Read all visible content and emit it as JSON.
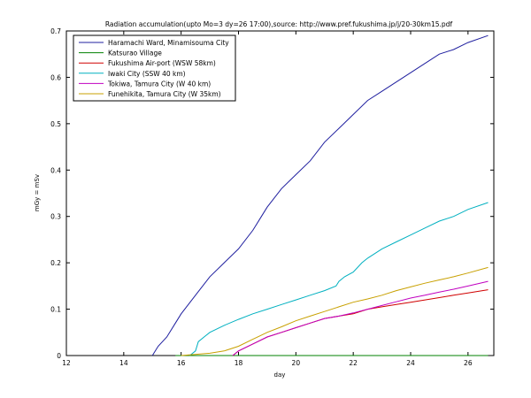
{
  "chart_data": {
    "type": "line",
    "title": "Radiation accumulation(upto Mo=3 dy=26 17:00),source: http://www.pref.fukushima.jp/j/20-30km15.pdf",
    "xlabel": "day",
    "ylabel": "mGy = mSv",
    "xlim": [
      12,
      26.9
    ],
    "ylim": [
      0,
      0.7
    ],
    "xticks": [
      12,
      14,
      16,
      18,
      20,
      22,
      24,
      26
    ],
    "yticks": [
      0,
      0.1,
      0.2,
      0.3,
      0.4,
      0.5,
      0.6,
      0.7
    ],
    "x_tick_labels": [
      "12",
      "14",
      "16",
      "18",
      "20",
      "22",
      "24",
      "26"
    ],
    "y_tick_labels": [
      "0",
      "0.1",
      "0.2",
      "0.3",
      "0.4",
      "0.5",
      "0.6",
      "0.7"
    ],
    "grid": false,
    "legend_position": "top-left",
    "series": [
      {
        "name": "Haramachi Ward, Minamisouma City",
        "color": "#1f1f9f",
        "points": [
          [
            15.0,
            0.0
          ],
          [
            15.2,
            0.02
          ],
          [
            15.5,
            0.04
          ],
          [
            15.8,
            0.07
          ],
          [
            16.0,
            0.09
          ],
          [
            16.5,
            0.13
          ],
          [
            17.0,
            0.17
          ],
          [
            17.5,
            0.2
          ],
          [
            18.0,
            0.23
          ],
          [
            18.5,
            0.27
          ],
          [
            18.8,
            0.3
          ],
          [
            19.0,
            0.32
          ],
          [
            19.5,
            0.36
          ],
          [
            20.0,
            0.39
          ],
          [
            20.5,
            0.42
          ],
          [
            21.0,
            0.46
          ],
          [
            21.5,
            0.49
          ],
          [
            22.0,
            0.52
          ],
          [
            22.5,
            0.55
          ],
          [
            23.0,
            0.57
          ],
          [
            23.5,
            0.59
          ],
          [
            24.0,
            0.61
          ],
          [
            24.5,
            0.63
          ],
          [
            25.0,
            0.65
          ],
          [
            25.5,
            0.66
          ],
          [
            26.0,
            0.675
          ],
          [
            26.7,
            0.69
          ]
        ]
      },
      {
        "name": "Katsurao Village",
        "color": "#008000",
        "points": [
          [
            15.8,
            0.0
          ],
          [
            26.7,
            0.0
          ]
        ]
      },
      {
        "name": "Fukushima Air-port (WSW 58km)",
        "color": "#d00000",
        "points": [
          [
            17.8,
            0.0
          ],
          [
            18.0,
            0.01
          ],
          [
            18.5,
            0.025
          ],
          [
            19.0,
            0.04
          ],
          [
            19.5,
            0.05
          ],
          [
            20.0,
            0.06
          ],
          [
            20.5,
            0.07
          ],
          [
            21.0,
            0.08
          ],
          [
            21.5,
            0.085
          ],
          [
            22.0,
            0.09
          ],
          [
            22.5,
            0.1
          ],
          [
            23.0,
            0.105
          ],
          [
            23.5,
            0.11
          ],
          [
            24.0,
            0.115
          ],
          [
            24.5,
            0.12
          ],
          [
            25.0,
            0.125
          ],
          [
            25.5,
            0.13
          ],
          [
            26.0,
            0.135
          ],
          [
            26.7,
            0.142
          ]
        ]
      },
      {
        "name": "Iwaki City (SSW 40 km)",
        "color": "#00b0c0",
        "points": [
          [
            16.3,
            0.0
          ],
          [
            16.5,
            0.01
          ],
          [
            16.6,
            0.03
          ],
          [
            16.8,
            0.04
          ],
          [
            17.0,
            0.05
          ],
          [
            17.5,
            0.065
          ],
          [
            18.0,
            0.078
          ],
          [
            18.5,
            0.09
          ],
          [
            19.0,
            0.1
          ],
          [
            19.5,
            0.11
          ],
          [
            20.0,
            0.12
          ],
          [
            20.5,
            0.13
          ],
          [
            21.0,
            0.14
          ],
          [
            21.4,
            0.15
          ],
          [
            21.5,
            0.16
          ],
          [
            21.7,
            0.17
          ],
          [
            22.0,
            0.18
          ],
          [
            22.3,
            0.2
          ],
          [
            22.5,
            0.21
          ],
          [
            23.0,
            0.23
          ],
          [
            23.5,
            0.245
          ],
          [
            24.0,
            0.26
          ],
          [
            24.5,
            0.275
          ],
          [
            25.0,
            0.29
          ],
          [
            25.5,
            0.3
          ],
          [
            26.0,
            0.315
          ],
          [
            26.7,
            0.33
          ]
        ]
      },
      {
        "name": "Tokiwa, Tamura City (W 40 km)",
        "color": "#c000c0",
        "points": [
          [
            17.8,
            0.0
          ],
          [
            18.0,
            0.01
          ],
          [
            18.5,
            0.025
          ],
          [
            19.0,
            0.04
          ],
          [
            19.5,
            0.05
          ],
          [
            20.0,
            0.06
          ],
          [
            20.5,
            0.07
          ],
          [
            21.0,
            0.08
          ],
          [
            21.5,
            0.085
          ],
          [
            22.0,
            0.092
          ],
          [
            22.5,
            0.1
          ],
          [
            23.0,
            0.108
          ],
          [
            23.5,
            0.116
          ],
          [
            24.0,
            0.124
          ],
          [
            24.5,
            0.13
          ],
          [
            25.0,
            0.137
          ],
          [
            25.5,
            0.143
          ],
          [
            26.0,
            0.15
          ],
          [
            26.7,
            0.16
          ]
        ]
      },
      {
        "name": "Funehikita, Tamura City (W 35km)",
        "color": "#c8a000",
        "points": [
          [
            16.0,
            0.0
          ],
          [
            17.0,
            0.005
          ],
          [
            17.5,
            0.01
          ],
          [
            18.0,
            0.02
          ],
          [
            18.5,
            0.035
          ],
          [
            19.0,
            0.05
          ],
          [
            19.5,
            0.062
          ],
          [
            20.0,
            0.075
          ],
          [
            20.5,
            0.085
          ],
          [
            21.0,
            0.095
          ],
          [
            21.5,
            0.105
          ],
          [
            22.0,
            0.115
          ],
          [
            22.5,
            0.122
          ],
          [
            23.0,
            0.13
          ],
          [
            23.5,
            0.14
          ],
          [
            24.0,
            0.148
          ],
          [
            24.5,
            0.156
          ],
          [
            25.0,
            0.163
          ],
          [
            25.5,
            0.17
          ],
          [
            26.0,
            0.178
          ],
          [
            26.7,
            0.19
          ]
        ]
      }
    ]
  }
}
